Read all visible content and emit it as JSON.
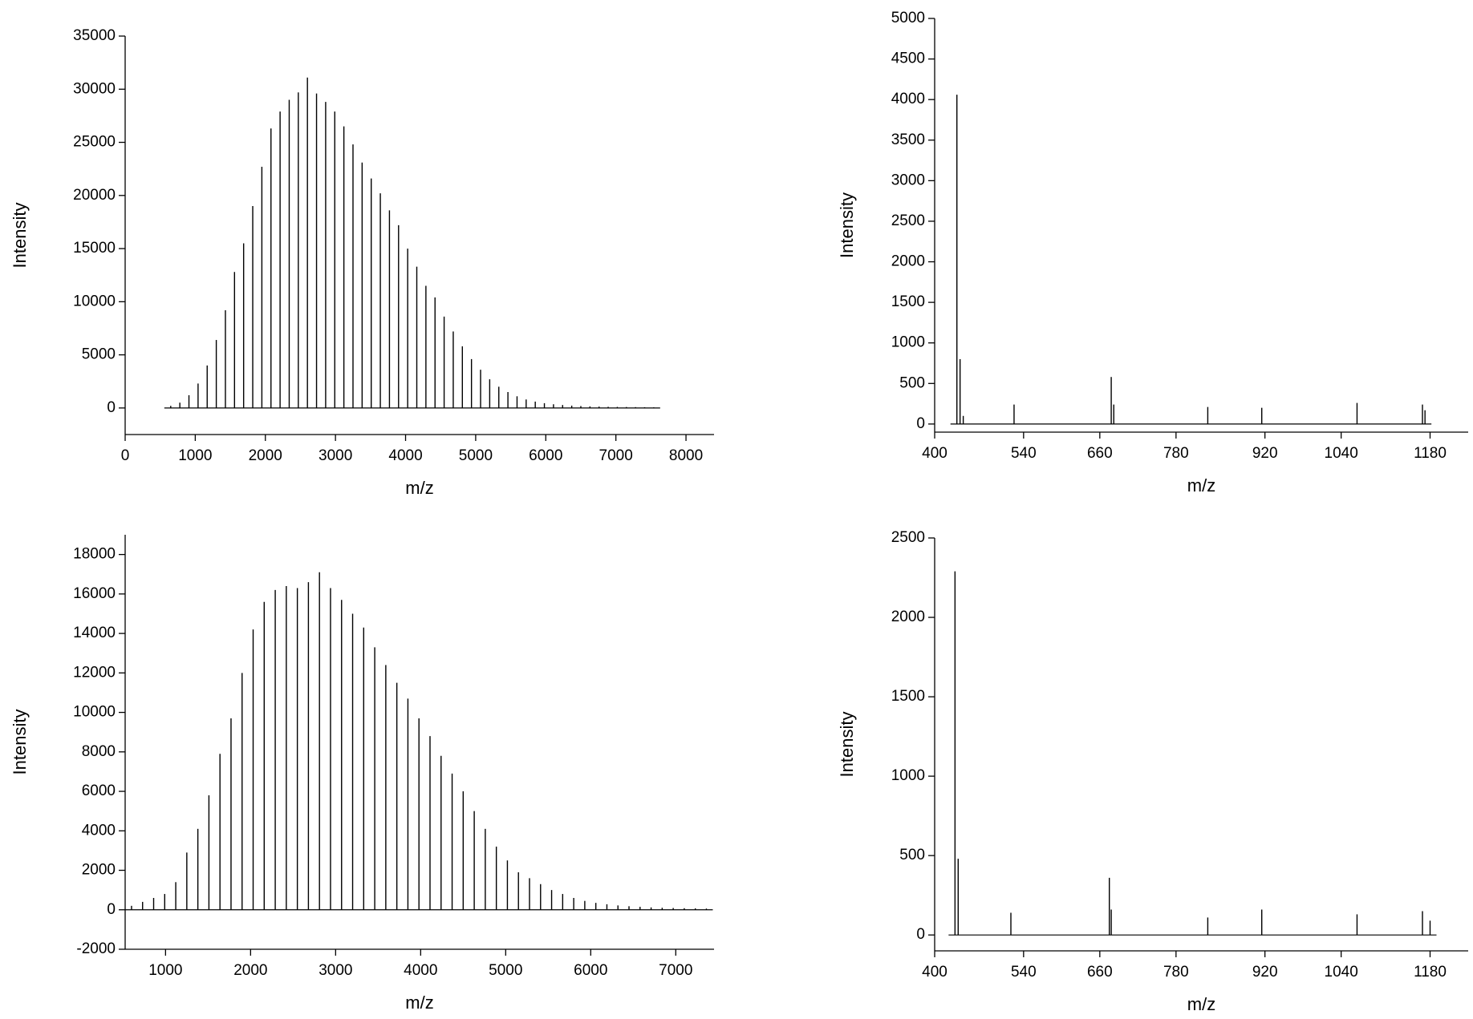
{
  "chart_data": [
    {
      "type": "bar",
      "xlabel": "m/z",
      "ylabel": "Intensity",
      "color": "#000000",
      "xlim": [
        0,
        8400
      ],
      "ylim": [
        -2500,
        35000
      ],
      "xticks": [
        0,
        1000,
        2000,
        3000,
        4000,
        5000,
        6000,
        7000,
        8000
      ],
      "yticks": [
        0,
        5000,
        10000,
        15000,
        20000,
        25000,
        30000,
        35000
      ],
      "x": [
        650,
        780,
        910,
        1040,
        1170,
        1300,
        1430,
        1560,
        1690,
        1820,
        1950,
        2080,
        2210,
        2340,
        2470,
        2600,
        2730,
        2860,
        2990,
        3120,
        3250,
        3380,
        3510,
        3640,
        3770,
        3900,
        4030,
        4160,
        4290,
        4420,
        4550,
        4680,
        4810,
        4940,
        5070,
        5200,
        5330,
        5460,
        5590,
        5720,
        5850,
        5980,
        6110,
        6240,
        6370,
        6500,
        6630,
        6760,
        6890,
        7020,
        7150,
        7280,
        7410,
        7540
      ],
      "values": [
        200,
        500,
        1200,
        2300,
        4000,
        6400,
        9200,
        12800,
        15500,
        19000,
        22700,
        26300,
        27900,
        29000,
        29700,
        31100,
        29600,
        28800,
        27900,
        26500,
        24800,
        23100,
        21600,
        20200,
        18600,
        17200,
        15000,
        13300,
        11500,
        10400,
        8600,
        7200,
        5800,
        4600,
        3600,
        2700,
        2000,
        1500,
        1100,
        800,
        600,
        450,
        350,
        280,
        220,
        180,
        150,
        130,
        110,
        100,
        90,
        80,
        70,
        60
      ]
    },
    {
      "type": "bar",
      "xlabel": "m/z",
      "ylabel": "Intensity",
      "color": "#000000",
      "xlim": [
        400,
        1240
      ],
      "ylim": [
        -100,
        5000
      ],
      "xticks": [
        400,
        540,
        660,
        780,
        920,
        1040,
        1180
      ],
      "yticks": [
        0,
        500,
        1000,
        1500,
        2000,
        2500,
        3000,
        3500,
        4000,
        4500,
        5000
      ],
      "x": [
        435,
        440,
        445,
        525,
        678,
        682,
        830,
        915,
        1065,
        1168,
        1172
      ],
      "values": [
        4060,
        800,
        100,
        240,
        580,
        240,
        210,
        200,
        260,
        240,
        170
      ]
    },
    {
      "type": "bar",
      "xlabel": "m/z",
      "ylabel": "Intensity",
      "color": "#000000",
      "xlim": [
        525,
        7450
      ],
      "ylim": [
        -2000,
        19000
      ],
      "xticks": [
        1000,
        2000,
        3000,
        4000,
        5000,
        6000,
        7000
      ],
      "yticks": [
        -2000,
        0,
        2000,
        4000,
        6000,
        8000,
        10000,
        12000,
        14000,
        16000,
        18000
      ],
      "x": [
        600,
        730,
        860,
        990,
        1120,
        1250,
        1380,
        1510,
        1640,
        1770,
        1900,
        2030,
        2160,
        2290,
        2420,
        2550,
        2680,
        2810,
        2940,
        3070,
        3200,
        3330,
        3460,
        3590,
        3720,
        3850,
        3980,
        4110,
        4240,
        4370,
        4500,
        4630,
        4760,
        4890,
        5020,
        5150,
        5280,
        5410,
        5540,
        5670,
        5800,
        5930,
        6060,
        6190,
        6320,
        6450,
        6580,
        6710,
        6840,
        6970,
        7100,
        7230,
        7360
      ],
      "values": [
        200,
        400,
        600,
        800,
        1400,
        2900,
        4100,
        5800,
        7900,
        9700,
        12000,
        14200,
        15600,
        16200,
        16400,
        16300,
        16600,
        17100,
        16300,
        15700,
        15000,
        14300,
        13300,
        12400,
        11500,
        10700,
        9700,
        8800,
        7800,
        6900,
        6000,
        5000,
        4100,
        3200,
        2500,
        1900,
        1600,
        1300,
        1000,
        800,
        600,
        450,
        350,
        280,
        220,
        180,
        150,
        120,
        100,
        90,
        80,
        70,
        60
      ]
    },
    {
      "type": "bar",
      "xlabel": "m/z",
      "ylabel": "Intensity",
      "color": "#000000",
      "xlim": [
        400,
        1240
      ],
      "ylim": [
        -100,
        2500
      ],
      "xticks": [
        400,
        540,
        660,
        780,
        920,
        1040,
        1180
      ],
      "yticks": [
        0,
        500,
        1000,
        1500,
        2000,
        2500
      ],
      "x": [
        432,
        437,
        520,
        675,
        678,
        830,
        915,
        1065,
        1168,
        1180
      ],
      "values": [
        2290,
        480,
        140,
        360,
        160,
        110,
        160,
        130,
        150,
        90
      ]
    }
  ]
}
